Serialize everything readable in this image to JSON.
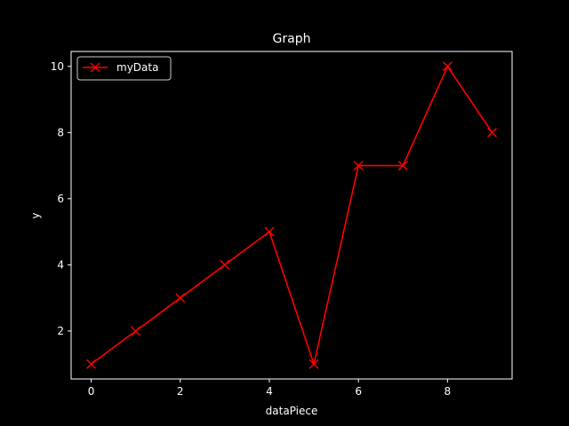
{
  "chart_data": {
    "type": "line",
    "title": "Graph",
    "xlabel": "dataPiece",
    "ylabel": "y",
    "x": [
      0,
      1,
      2,
      3,
      4,
      5,
      6,
      7,
      8,
      9
    ],
    "series": [
      {
        "name": "myData",
        "values": [
          1,
          2,
          3,
          4,
          5,
          1,
          7,
          7,
          10,
          8
        ],
        "color": "#ff0000",
        "marker": "x"
      }
    ],
    "xlim": [
      -0.45,
      9.45
    ],
    "ylim": [
      0.55,
      10.45
    ],
    "xticks": [
      "0",
      "2",
      "4",
      "6",
      "8"
    ],
    "yticks": [
      "2",
      "4",
      "6",
      "8",
      "10"
    ],
    "grid": false,
    "legend_position": "top-left",
    "background": "#000000",
    "foreground": "#ffffff"
  }
}
